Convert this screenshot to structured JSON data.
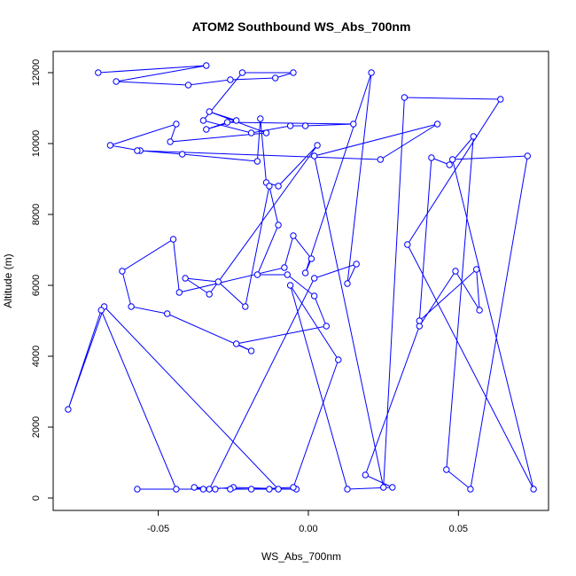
{
  "chart_data": {
    "type": "line",
    "title": "ATOM2 Southbound WS_Abs_700nm",
    "xlabel": "WS_Abs_700nm",
    "ylabel": "Altitude (m)",
    "xlim": [
      -0.085,
      0.08
    ],
    "ylim": [
      -350,
      12600
    ],
    "x_ticks": [
      -0.05,
      0.0,
      0.05
    ],
    "x_tick_labels": [
      "-0.05",
      "0.00",
      "0.05"
    ],
    "y_ticks": [
      0,
      2000,
      4000,
      6000,
      8000,
      10000,
      12000
    ],
    "y_tick_labels": [
      "0",
      "2000",
      "4000",
      "6000",
      "8000",
      "10000",
      "12000"
    ],
    "series_color": "#0000ff",
    "marker": "open-circle",
    "grid": false,
    "x": [
      -0.07,
      -0.034,
      -0.064,
      -0.04,
      -0.026,
      -0.011,
      -0.005,
      -0.022,
      -0.035,
      -0.019,
      -0.006,
      -0.001,
      0.015,
      -0.027,
      -0.034,
      -0.024,
      -0.033,
      -0.014,
      -0.046,
      -0.044,
      -0.066,
      -0.056,
      -0.042,
      -0.017,
      -0.016,
      -0.014,
      -0.01,
      0.003,
      -0.033,
      -0.041,
      -0.03,
      -0.021,
      -0.013,
      -0.01,
      -0.017,
      -0.007,
      0.002,
      0.006,
      -0.024,
      -0.019,
      -0.047,
      -0.059,
      -0.062,
      -0.045,
      -0.043,
      -0.008,
      -0.005,
      0.001,
      -0.001,
      0.021,
      0.013,
      0.016,
      0.002,
      -0.033,
      -0.025,
      -0.004,
      -0.026,
      -0.013,
      -0.01,
      -0.068,
      -0.08,
      -0.069,
      -0.044,
      -0.031,
      -0.057,
      -0.035,
      -0.038,
      -0.019,
      -0.005,
      0.01,
      -0.006,
      0.013,
      0.028,
      0.019,
      0.037,
      0.049,
      0.057,
      0.056,
      0.037,
      0.041,
      0.047,
      0.055,
      0.046,
      0.054,
      0.073,
      0.048,
      0.075,
      0.033,
      0.064,
      0.032,
      0.025,
      0.002,
      0.043,
      0.024,
      -0.057
    ],
    "y": [
      12000,
      12200,
      11750,
      11650,
      11800,
      11850,
      12000,
      12000,
      10650,
      10300,
      10500,
      10500,
      10550,
      10600,
      10400,
      10650,
      10900,
      10300,
      10050,
      10550,
      9950,
      9800,
      9700,
      9500,
      10700,
      8900,
      8800,
      9950,
      5750,
      6200,
      6100,
      5400,
      8800,
      7700,
      6300,
      6300,
      5700,
      4850,
      4350,
      4150,
      5200,
      5400,
      6400,
      7300,
      5800,
      6500,
      7400,
      6750,
      6350,
      12000,
      6050,
      6600,
      6200,
      250,
      300,
      250,
      250,
      250,
      250,
      5400,
      2500,
      5300,
      250,
      250,
      250,
      250,
      300,
      250,
      300,
      3900,
      6000,
      250,
      300,
      650,
      4850,
      6400,
      5300,
      6450,
      5000,
      9600,
      9400,
      10200,
      800,
      250,
      9650,
      9550,
      250,
      7150,
      11250,
      11300,
      300,
      9650,
      10550,
      9550,
      9800
    ]
  }
}
